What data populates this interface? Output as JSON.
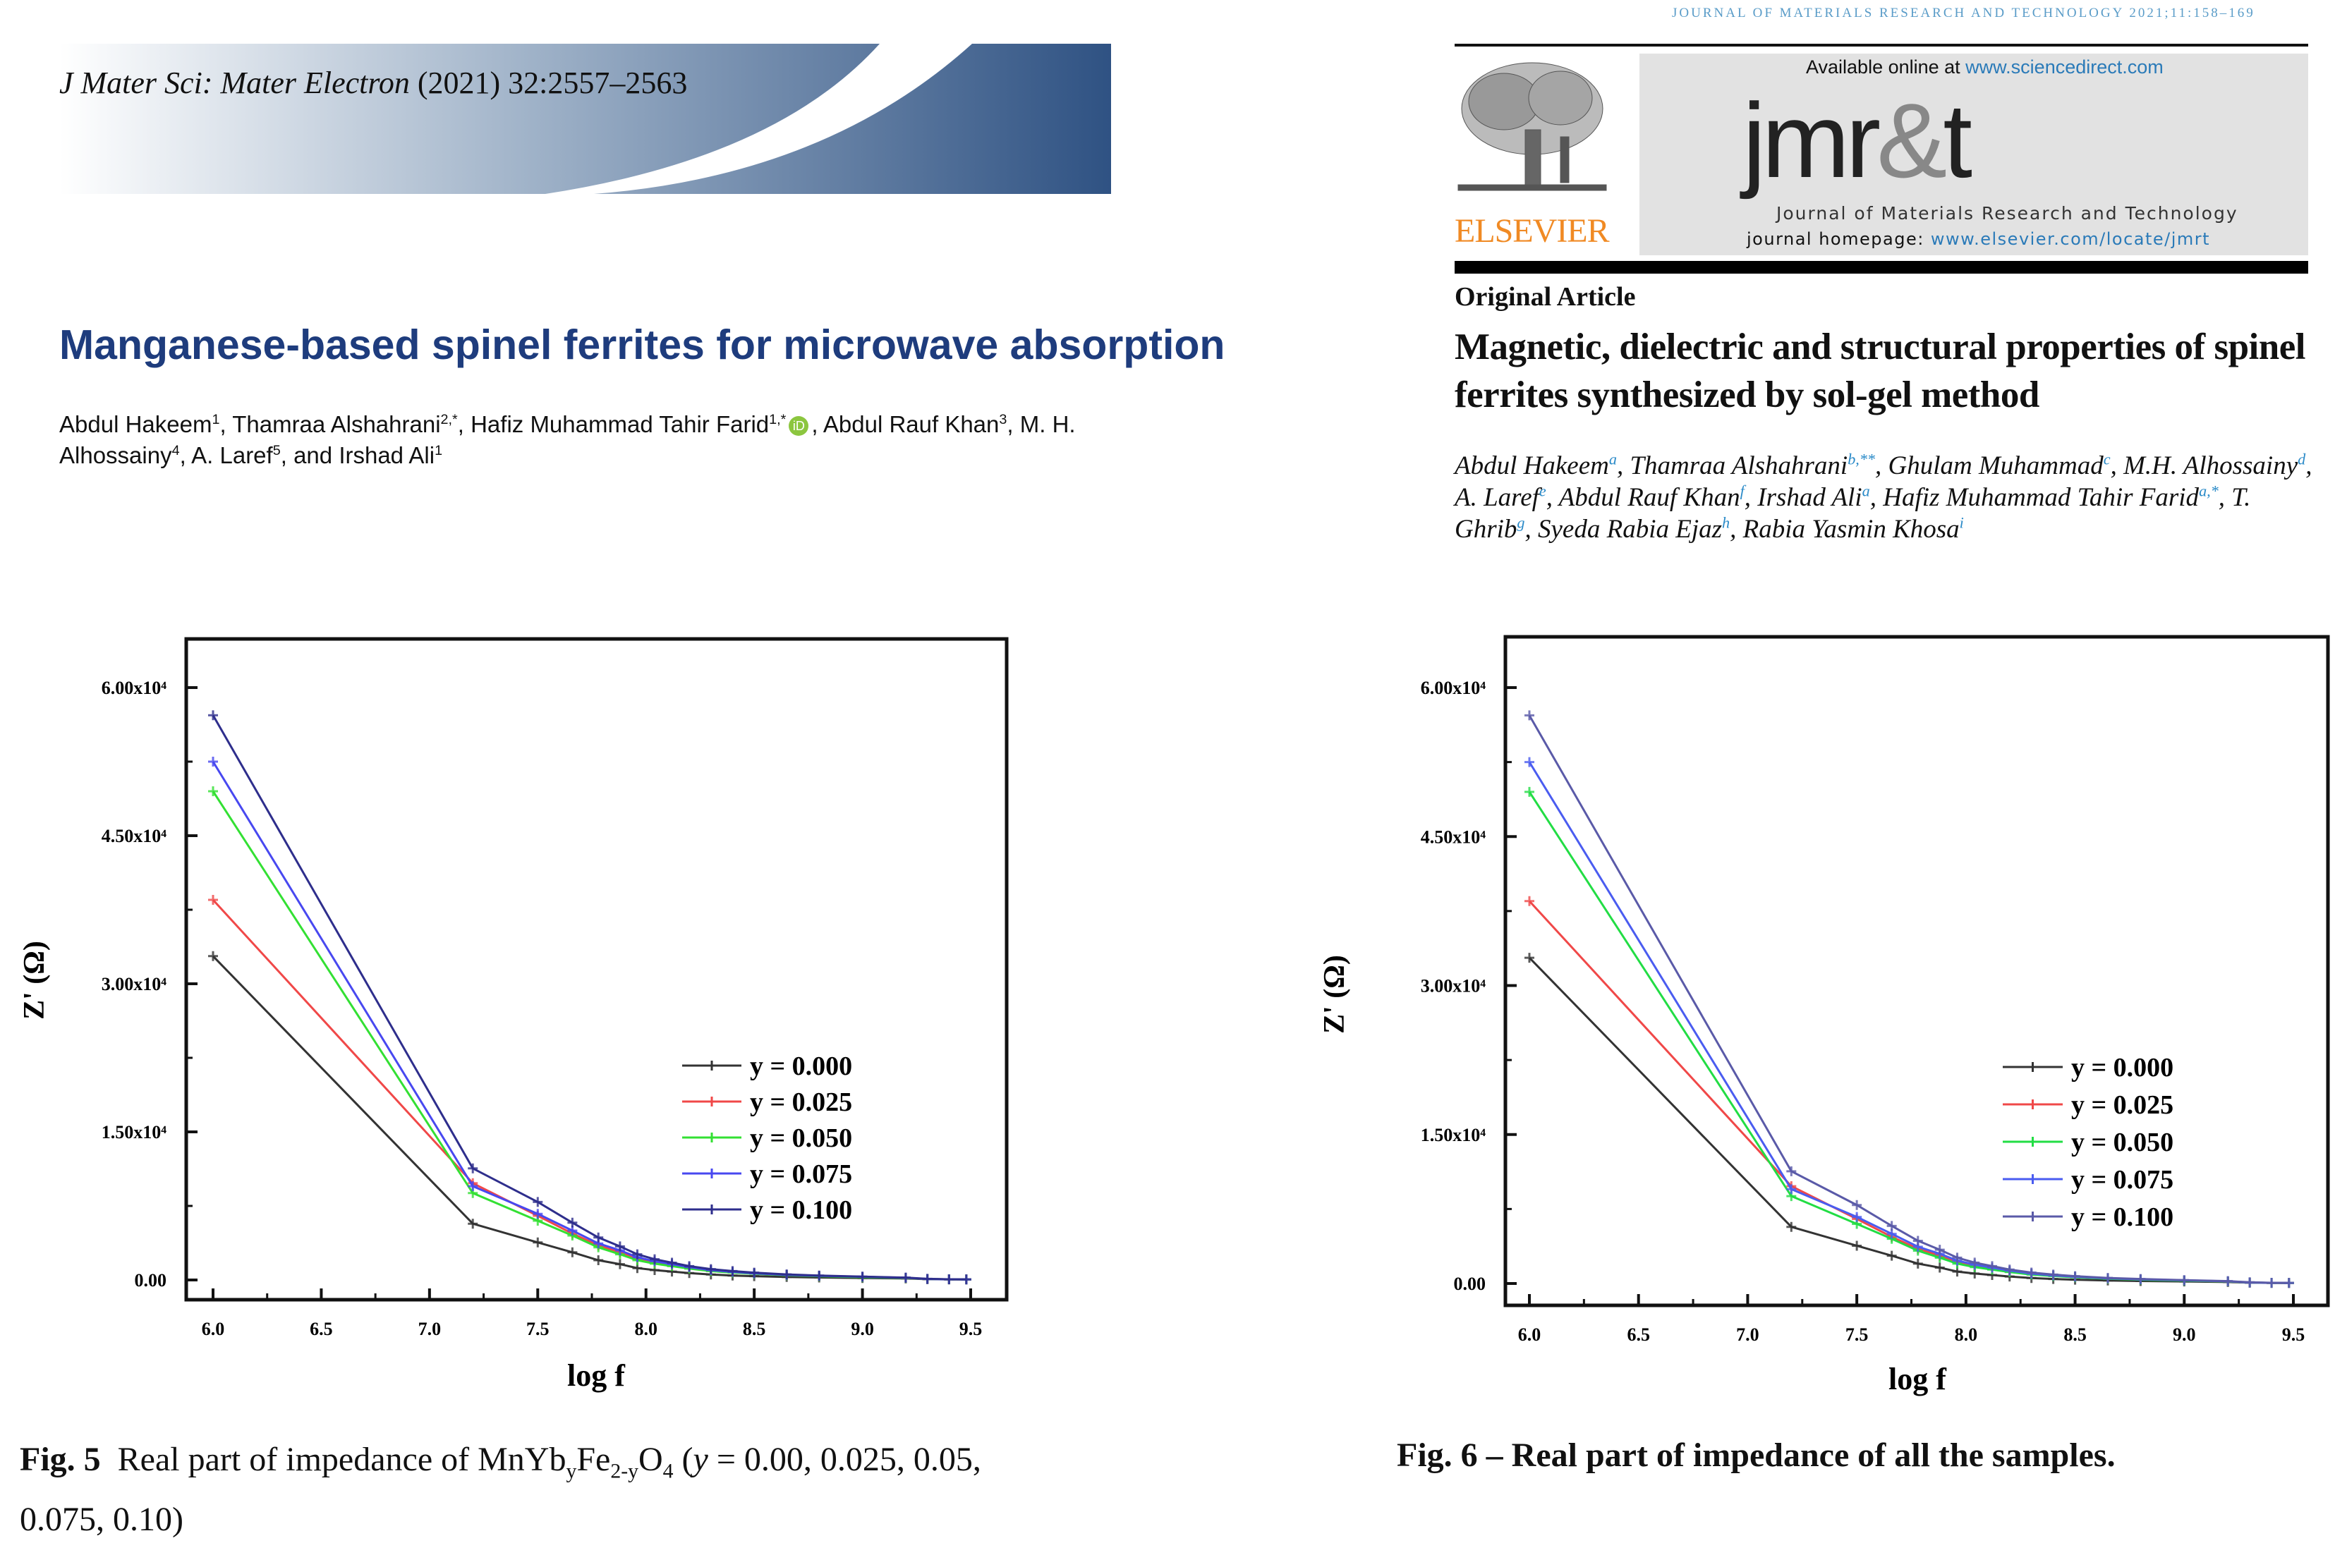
{
  "left_paper": {
    "journal": {
      "name": "J Mater Sci: Mater Electron",
      "citation": "(2021) 32:2557–2563"
    },
    "banner_colors": {
      "light": "#ffffff",
      "dark": "#2f5283"
    },
    "title": "Manganese-based spinel ferrites for microwave absorption",
    "title_color": "#1e3c7d",
    "authors": [
      {
        "name": "Abdul Hakeem",
        "sup": "1",
        "sep": ", "
      },
      {
        "name": "Thamraa Alshahrani",
        "sup": "2,*",
        "sep": ", "
      },
      {
        "name": "Hafiz Muhammad Tahir Farid",
        "sup": "1,*",
        "sep": ", ",
        "orcid": true
      },
      {
        "name": "Abdul Rauf Khan",
        "sup": "3",
        "sep": ", "
      },
      {
        "name": "M. H. Alhossainy",
        "sup": "4",
        "sep": ", "
      },
      {
        "name": "A. Laref",
        "sup": "5",
        "sep": ", and "
      },
      {
        "name": "Irshad Ali",
        "sup": "1",
        "sep": ""
      }
    ],
    "orcid_icon": "iD",
    "caption": {
      "label": "Fig. 5",
      "text1": "Real part of impedance of MnYb",
      "sub1": "y",
      "text2": "Fe",
      "sub2": "2-y",
      "text3": "O",
      "sub3": "4",
      "text4": " (",
      "var": "y",
      "text5": " = 0.00, 0.025, 0.05, 0.075, 0.10)"
    }
  },
  "right_paper": {
    "running_header": "JOURNAL OF MATERIALS RESEARCH AND TECHNOLOGY 2021;11:158–169",
    "publisher": "ELSEVIER",
    "available_online": "Available online at ",
    "sciencedirect_url": "www.sciencedirect.com",
    "logo": {
      "j": "jmr",
      "amp": "&",
      "t": "t"
    },
    "journal_full": "Journal of Materials Research and Technology",
    "homepage_label": "journal homepage: ",
    "homepage_url": "www.elsevier.com/locate/jmrt",
    "article_type": "Original Article",
    "title": "Magnetic, dielectric and structural properties of spinel ferrites synthesized by sol-gel method",
    "authors": [
      {
        "name": "Abdul Hakeem",
        "sup": "a",
        "sep": ", "
      },
      {
        "name": "Thamraa Alshahrani",
        "sup": "b,**",
        "sep": ", "
      },
      {
        "name": "Ghulam Muhammad",
        "sup": "c",
        "sep": ", "
      },
      {
        "name": "M.H. Alhossainy",
        "sup": "d",
        "sep": ", "
      },
      {
        "name": "A. Laref",
        "sup": "e",
        "sep": ", "
      },
      {
        "name": "Abdul Rauf Khan",
        "sup": "f",
        "sep": ", "
      },
      {
        "name": "Irshad Ali",
        "sup": "a",
        "sep": ", "
      },
      {
        "name": "Hafiz Muhammad Tahir Farid",
        "sup": "a,*",
        "sep": ", "
      },
      {
        "name": "T. Ghrib",
        "sup": "g",
        "sep": ", "
      },
      {
        "name": "Syeda Rabia Ejaz",
        "sup": "h",
        "sep": ", "
      },
      {
        "name": "Rabia Yasmin Khosa",
        "sup": "i",
        "sep": ""
      }
    ],
    "publisher_color": "#f08a24",
    "link_color": "#2a7ab8",
    "caption": {
      "label": "Fig. 6",
      "text": " – Real part of impedance of all the samples."
    }
  },
  "chart_data": [
    {
      "type": "line",
      "figure": "Fig. 5",
      "xlabel": "log f",
      "ylabel": "Z' (Ω)",
      "xlim": [
        6.0,
        9.5
      ],
      "ylim": [
        0,
        60000
      ],
      "xticks": [
        "6.0",
        "6.5",
        "7.0",
        "7.5",
        "8.0",
        "8.5",
        "9.0",
        "9.5"
      ],
      "yticks": [
        "0.00",
        "1.50x10⁴",
        "3.00x10⁴",
        "4.50x10⁴",
        "6.00x10⁴"
      ],
      "grid": false,
      "legend": "center-right",
      "x": [
        6.0,
        7.2,
        7.5,
        7.66,
        7.78,
        7.88,
        7.96,
        8.04,
        8.12,
        8.2,
        8.3,
        8.4,
        8.5,
        8.65,
        8.8,
        9.0,
        9.2,
        9.3,
        9.4,
        9.48
      ],
      "series": [
        {
          "name": "y = 0.000",
          "color": "#333333",
          "values": [
            32800,
            5700,
            3800,
            2800,
            2000,
            1600,
            1200,
            1000,
            850,
            700,
            550,
            450,
            380,
            300,
            250,
            200,
            150,
            80,
            60,
            50
          ]
        },
        {
          "name": "y = 0.025",
          "color": "#f04848",
          "values": [
            38500,
            9800,
            6500,
            4700,
            3500,
            2800,
            2200,
            1800,
            1500,
            1200,
            950,
            780,
            650,
            500,
            400,
            300,
            200,
            100,
            60,
            50
          ]
        },
        {
          "name": "y = 0.050",
          "color": "#33e033",
          "values": [
            49500,
            8800,
            6000,
            4500,
            3300,
            2600,
            2000,
            1650,
            1400,
            1150,
            900,
            750,
            630,
            480,
            380,
            280,
            200,
            100,
            60,
            50
          ]
        },
        {
          "name": "y = 0.075",
          "color": "#4848f0",
          "values": [
            52500,
            9500,
            6700,
            5000,
            3700,
            3000,
            2300,
            1900,
            1600,
            1300,
            1000,
            820,
            680,
            520,
            420,
            320,
            220,
            100,
            60,
            50
          ]
        },
        {
          "name": "y = 0.100",
          "color": "#2e2e8c",
          "values": [
            57200,
            11300,
            7900,
            5800,
            4300,
            3400,
            2600,
            2100,
            1750,
            1400,
            1100,
            900,
            740,
            560,
            450,
            340,
            240,
            120,
            70,
            60
          ]
        }
      ]
    },
    {
      "type": "line",
      "figure": "Fig. 6",
      "xlabel": "log f",
      "ylabel": "Z' (Ω)",
      "xlim": [
        6.0,
        9.5
      ],
      "ylim": [
        0,
        60000
      ],
      "xticks": [
        "6.0",
        "6.5",
        "7.0",
        "7.5",
        "8.0",
        "8.5",
        "9.0",
        "9.5"
      ],
      "yticks": [
        "0.00",
        "1.50x10⁴",
        "3.00x10⁴",
        "4.50x10⁴",
        "6.00x10⁴"
      ],
      "grid": false,
      "legend": "center-right",
      "x": [
        6.0,
        7.2,
        7.5,
        7.66,
        7.78,
        7.88,
        7.96,
        8.04,
        8.12,
        8.2,
        8.3,
        8.4,
        8.5,
        8.65,
        8.8,
        9.0,
        9.2,
        9.3,
        9.4,
        9.48
      ],
      "series": [
        {
          "name": "y = 0.000",
          "color": "#333333",
          "values": [
            32800,
            5700,
            3800,
            2800,
            2000,
            1600,
            1200,
            1000,
            850,
            700,
            550,
            450,
            380,
            300,
            250,
            200,
            150,
            80,
            60,
            50
          ]
        },
        {
          "name": "y = 0.025",
          "color": "#f04848",
          "values": [
            38500,
            9800,
            6500,
            4700,
            3500,
            2800,
            2200,
            1800,
            1500,
            1200,
            950,
            780,
            650,
            500,
            400,
            300,
            200,
            100,
            60,
            50
          ]
        },
        {
          "name": "y = 0.050",
          "color": "#22dd44",
          "values": [
            49500,
            8800,
            6000,
            4500,
            3300,
            2600,
            2000,
            1650,
            1400,
            1150,
            900,
            750,
            630,
            480,
            380,
            280,
            200,
            100,
            60,
            50
          ]
        },
        {
          "name": "y = 0.075",
          "color": "#4a5cf0",
          "values": [
            52500,
            9500,
            6700,
            5000,
            3700,
            3000,
            2300,
            1900,
            1600,
            1300,
            1000,
            820,
            680,
            520,
            420,
            320,
            220,
            100,
            60,
            50
          ]
        },
        {
          "name": "y = 0.100",
          "color": "#5a5aa8",
          "values": [
            57200,
            11300,
            7900,
            5800,
            4300,
            3400,
            2600,
            2100,
            1750,
            1400,
            1100,
            900,
            740,
            560,
            450,
            340,
            240,
            120,
            70,
            60
          ]
        }
      ]
    }
  ]
}
